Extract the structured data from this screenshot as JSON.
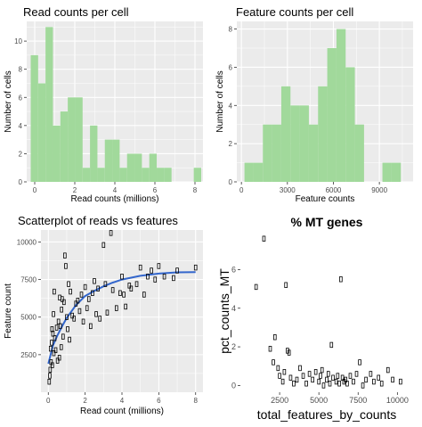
{
  "chart_data": [
    {
      "type": "bar",
      "title": "Read counts per cell",
      "xlabel": "Read counts (millions)",
      "ylabel": "Number of cells",
      "xlim": [
        -0.4,
        8.4
      ],
      "ylim": [
        0,
        11.4
      ],
      "xticks": [
        0,
        2,
        4,
        6,
        8
      ],
      "yticks": [
        0,
        2,
        4,
        6,
        8,
        10
      ],
      "grid": true,
      "bin_width": 0.37,
      "bin_starts": [
        -0.2,
        0.17,
        0.54,
        0.91,
        1.28,
        1.65,
        2.02,
        2.39,
        2.76,
        3.13,
        3.5,
        3.87,
        4.24,
        4.61,
        4.98,
        5.35,
        5.72,
        6.09,
        6.46,
        6.83,
        7.2,
        7.57,
        7.94
      ],
      "values": [
        9,
        7,
        11,
        4,
        5,
        6,
        6,
        1,
        4,
        1,
        3,
        3,
        1,
        2,
        2,
        1,
        2,
        1,
        1,
        0,
        0,
        0,
        1
      ],
      "color": "#a1d99b"
    },
    {
      "type": "bar",
      "title": "Feature counts per cell",
      "xlabel": "Feature counts",
      "ylabel": "Number of cells",
      "xlim": [
        -300,
        11200
      ],
      "ylim": [
        0,
        8.4
      ],
      "xticks": [
        0,
        3000,
        6000,
        9000
      ],
      "yticks": [
        0,
        2,
        4,
        6,
        8
      ],
      "grid": true,
      "bin_width": 600,
      "bin_starts": [
        200,
        800,
        1400,
        2000,
        2600,
        3200,
        3800,
        4400,
        5000,
        5600,
        6200,
        6800,
        7400,
        8000,
        8600,
        9200,
        9800,
        10400
      ],
      "values": [
        1,
        1,
        3,
        3,
        5,
        4,
        4,
        3,
        5,
        7,
        8,
        6,
        3,
        0,
        0,
        1,
        1,
        0
      ],
      "color": "#a1d99b"
    },
    {
      "type": "scatter",
      "title": "Scatterplot of reads vs features",
      "xlabel": "Read count (millions)",
      "ylabel": "Feature count",
      "xlim": [
        -0.4,
        8.4
      ],
      "ylim": [
        0,
        10800
      ],
      "xticks": [
        0,
        2,
        4,
        6,
        8
      ],
      "yticks": [
        2500,
        5000,
        7500,
        10000
      ],
      "grid": true,
      "points": [
        [
          0.05,
          700
        ],
        [
          0.08,
          1100
        ],
        [
          0.1,
          1500
        ],
        [
          0.12,
          2900
        ],
        [
          0.15,
          2000
        ],
        [
          0.18,
          3300
        ],
        [
          0.2,
          4200
        ],
        [
          0.22,
          1800
        ],
        [
          0.25,
          3900
        ],
        [
          0.28,
          5200
        ],
        [
          0.3,
          2600
        ],
        [
          0.32,
          6700
        ],
        [
          0.35,
          3600
        ],
        [
          0.4,
          2800
        ],
        [
          0.45,
          4300
        ],
        [
          0.5,
          2100
        ],
        [
          0.55,
          4700
        ],
        [
          0.6,
          2300
        ],
        [
          0.62,
          6300
        ],
        [
          0.65,
          4400
        ],
        [
          0.7,
          3000
        ],
        [
          0.72,
          5500
        ],
        [
          0.75,
          6200
        ],
        [
          0.8,
          3700
        ],
        [
          0.85,
          6000
        ],
        [
          0.9,
          9100
        ],
        [
          0.95,
          8400
        ],
        [
          1.0,
          5000
        ],
        [
          1.05,
          4200
        ],
        [
          1.1,
          7200
        ],
        [
          1.15,
          3500
        ],
        [
          1.2,
          6700
        ],
        [
          1.3,
          5100
        ],
        [
          1.4,
          4900
        ],
        [
          1.5,
          5900
        ],
        [
          1.6,
          6100
        ],
        [
          1.7,
          5400
        ],
        [
          1.8,
          6500
        ],
        [
          1.9,
          4700
        ],
        [
          2.0,
          7000
        ],
        [
          2.1,
          5600
        ],
        [
          2.2,
          6200
        ],
        [
          2.3,
          4400
        ],
        [
          2.4,
          6600
        ],
        [
          2.5,
          7400
        ],
        [
          2.6,
          5200
        ],
        [
          2.7,
          6900
        ],
        [
          2.8,
          4900
        ],
        [
          3.0,
          9800
        ],
        [
          3.1,
          7200
        ],
        [
          3.2,
          5300
        ],
        [
          3.4,
          10600
        ],
        [
          3.5,
          6800
        ],
        [
          3.7,
          5600
        ],
        [
          3.9,
          6600
        ],
        [
          4.0,
          7700
        ],
        [
          4.1,
          6500
        ],
        [
          4.2,
          5700
        ],
        [
          4.4,
          7100
        ],
        [
          4.5,
          6900
        ],
        [
          4.8,
          7200
        ],
        [
          5.0,
          8300
        ],
        [
          5.2,
          6500
        ],
        [
          5.4,
          7700
        ],
        [
          5.6,
          8100
        ],
        [
          5.8,
          7500
        ],
        [
          6.0,
          8400
        ],
        [
          6.3,
          7700
        ],
        [
          6.8,
          7600
        ],
        [
          7.0,
          8100
        ],
        [
          8.0,
          8300
        ]
      ],
      "trend": [
        [
          0,
          1900
        ],
        [
          0.25,
          3100
        ],
        [
          0.5,
          3800
        ],
        [
          0.75,
          4400
        ],
        [
          1.0,
          4950
        ],
        [
          1.5,
          5800
        ],
        [
          2.0,
          6400
        ],
        [
          2.5,
          6750
        ],
        [
          3.0,
          7050
        ],
        [
          3.5,
          7300
        ],
        [
          4.0,
          7500
        ],
        [
          5.0,
          7750
        ],
        [
          6.0,
          7900
        ],
        [
          7.0,
          7980
        ],
        [
          8.0,
          8000
        ]
      ],
      "trend_color": "#3366cc"
    },
    {
      "type": "scatter",
      "title": "% MT genes",
      "xlabel": "total_features_by_counts",
      "ylabel": "pct_counts_MT",
      "xlim": [
        0,
        11000
      ],
      "ylim": [
        -0.35,
        8.05
      ],
      "xticks": [
        2500,
        5000,
        7500,
        10000
      ],
      "yticks": [
        0,
        2,
        4,
        6
      ],
      "grid": false,
      "points": [
        [
          1000,
          5.1
        ],
        [
          1500,
          7.6
        ],
        [
          1900,
          1.9
        ],
        [
          2100,
          1.2
        ],
        [
          2200,
          2.5
        ],
        [
          2400,
          0.9
        ],
        [
          2500,
          0.5
        ],
        [
          2700,
          0.2
        ],
        [
          2800,
          0.7
        ],
        [
          2900,
          5.2
        ],
        [
          3000,
          1.8
        ],
        [
          3100,
          1.7
        ],
        [
          3200,
          0.4
        ],
        [
          3400,
          0.1
        ],
        [
          3600,
          0.3
        ],
        [
          3800,
          0.9
        ],
        [
          4000,
          0.5
        ],
        [
          4200,
          0.1
        ],
        [
          4400,
          0.6
        ],
        [
          4600,
          0.3
        ],
        [
          4800,
          0.7
        ],
        [
          5000,
          0.2
        ],
        [
          5100,
          0.5
        ],
        [
          5200,
          0.8
        ],
        [
          5300,
          0.0
        ],
        [
          5500,
          0.3
        ],
        [
          5600,
          0.6
        ],
        [
          5700,
          0.1
        ],
        [
          5800,
          2.1
        ],
        [
          5900,
          0.4
        ],
        [
          6100,
          0.2
        ],
        [
          6200,
          0.5
        ],
        [
          6300,
          0.1
        ],
        [
          6400,
          5.5
        ],
        [
          6500,
          0.4
        ],
        [
          6600,
          0.2
        ],
        [
          6700,
          0.3
        ],
        [
          6800,
          0.1
        ],
        [
          7000,
          0.5
        ],
        [
          7200,
          0.2
        ],
        [
          7400,
          0.6
        ],
        [
          7600,
          1.2
        ],
        [
          7800,
          0.0
        ],
        [
          8000,
          0.3
        ],
        [
          8300,
          0.6
        ],
        [
          8500,
          0.2
        ],
        [
          8800,
          0.4
        ],
        [
          9000,
          0.1
        ],
        [
          9400,
          0.8
        ],
        [
          9700,
          0.3
        ],
        [
          10200,
          0.2
        ]
      ]
    }
  ]
}
